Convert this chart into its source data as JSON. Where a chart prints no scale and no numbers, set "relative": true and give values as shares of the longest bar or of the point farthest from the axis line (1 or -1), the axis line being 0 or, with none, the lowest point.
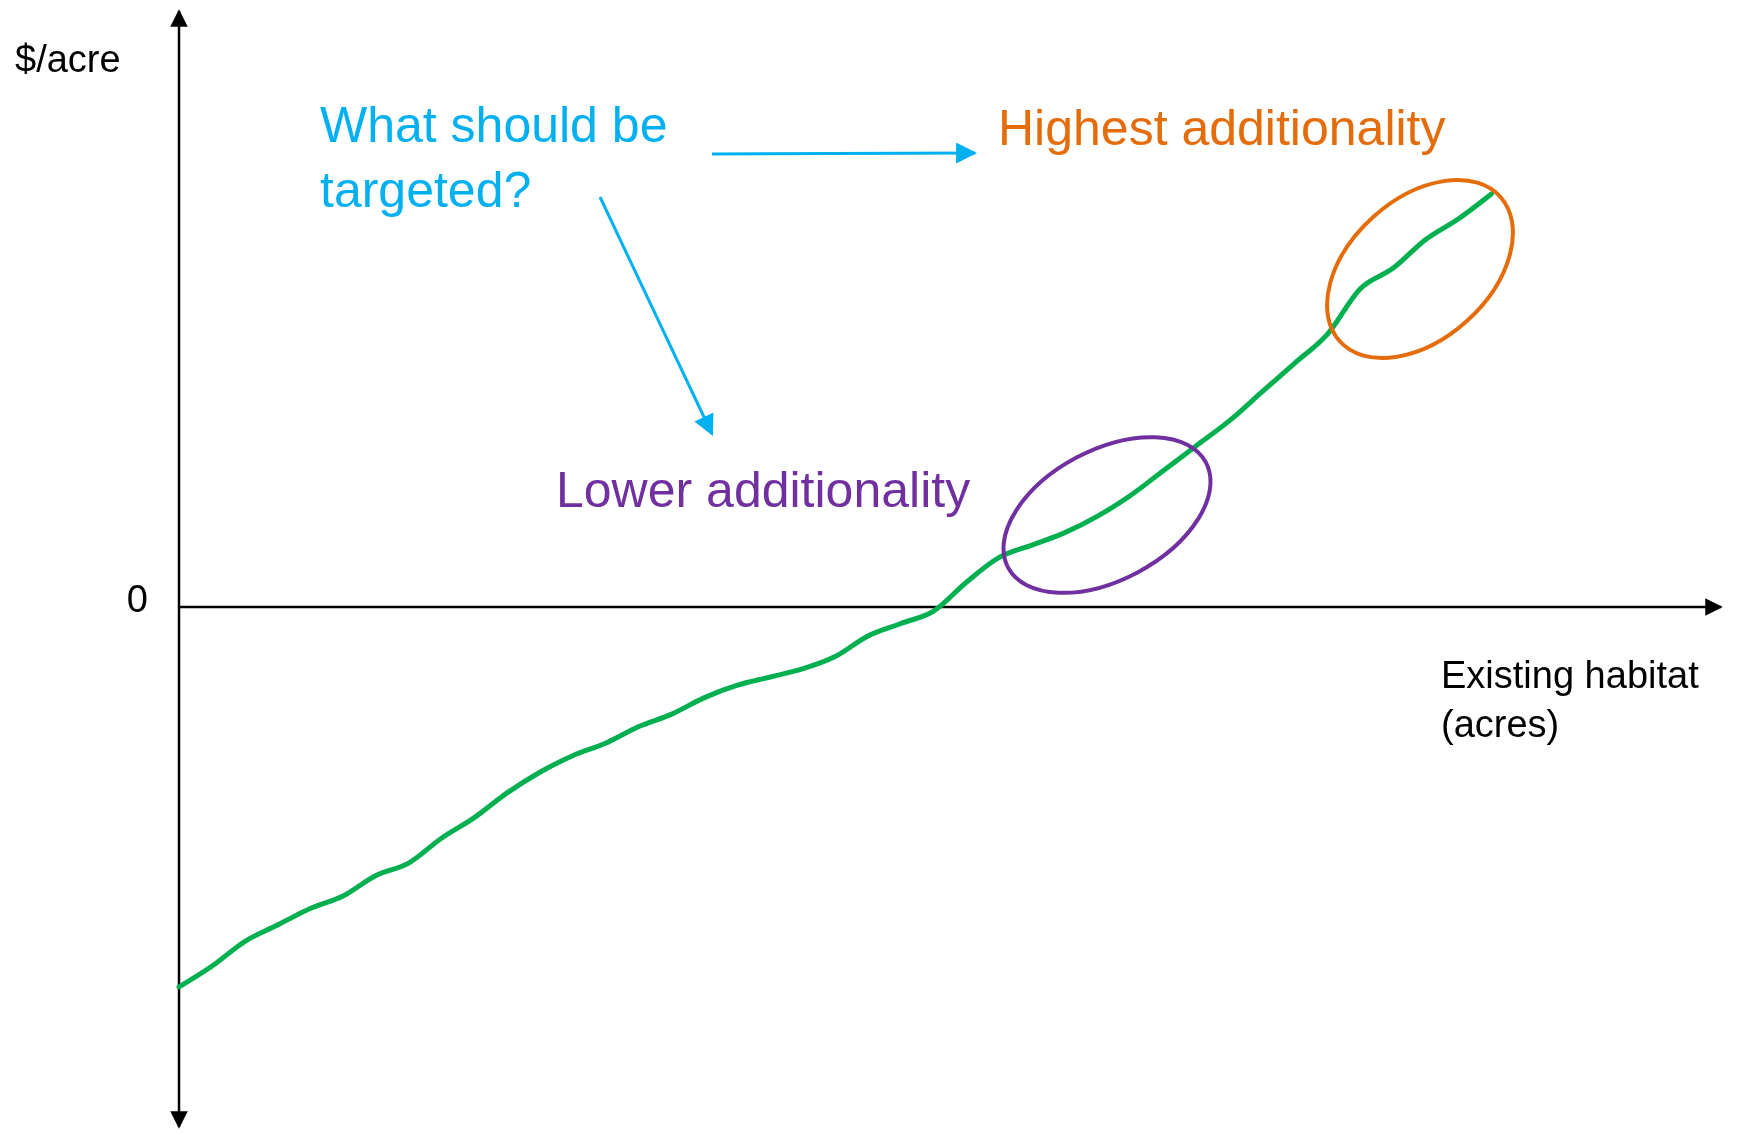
{
  "chart_data": {
    "type": "line",
    "relative": true,
    "xlabel": "Existing habitat (acres)",
    "ylabel": "$/acre",
    "categories": [
      null,
      null,
      null,
      null,
      null,
      null,
      null,
      null,
      null,
      null,
      null,
      null,
      null,
      null,
      null,
      null,
      null,
      null,
      null,
      null,
      null,
      null,
      null,
      null,
      null,
      null,
      null,
      null,
      null,
      null,
      null,
      null,
      null,
      null,
      null,
      null,
      null,
      null,
      null,
      null,
      null,
      null,
      null,
      null,
      null,
      null,
      null,
      null
    ],
    "values": [
      -0.92,
      -0.87,
      -0.81,
      -0.77,
      -0.73,
      -0.7,
      -0.65,
      -0.62,
      -0.56,
      -0.51,
      -0.45,
      -0.4,
      -0.36,
      -0.33,
      -0.29,
      -0.26,
      -0.22,
      -0.19,
      -0.17,
      -0.15,
      -0.12,
      -0.07,
      -0.04,
      -0.01,
      0.06,
      0.12,
      0.15,
      0.18,
      0.22,
      0.27,
      0.33,
      0.39,
      0.45,
      0.52,
      0.59,
      0.66,
      0.77,
      0.82,
      0.89,
      0.94,
      1,
      null,
      null,
      null,
      null,
      null,
      null,
      null
    ],
    "color": "#00b050",
    "marker": "none",
    "line_style": "solid",
    "annotations": [
      "0",
      "What should be targeted?",
      "Highest additionality",
      "Lower additionality"
    ]
  }
}
